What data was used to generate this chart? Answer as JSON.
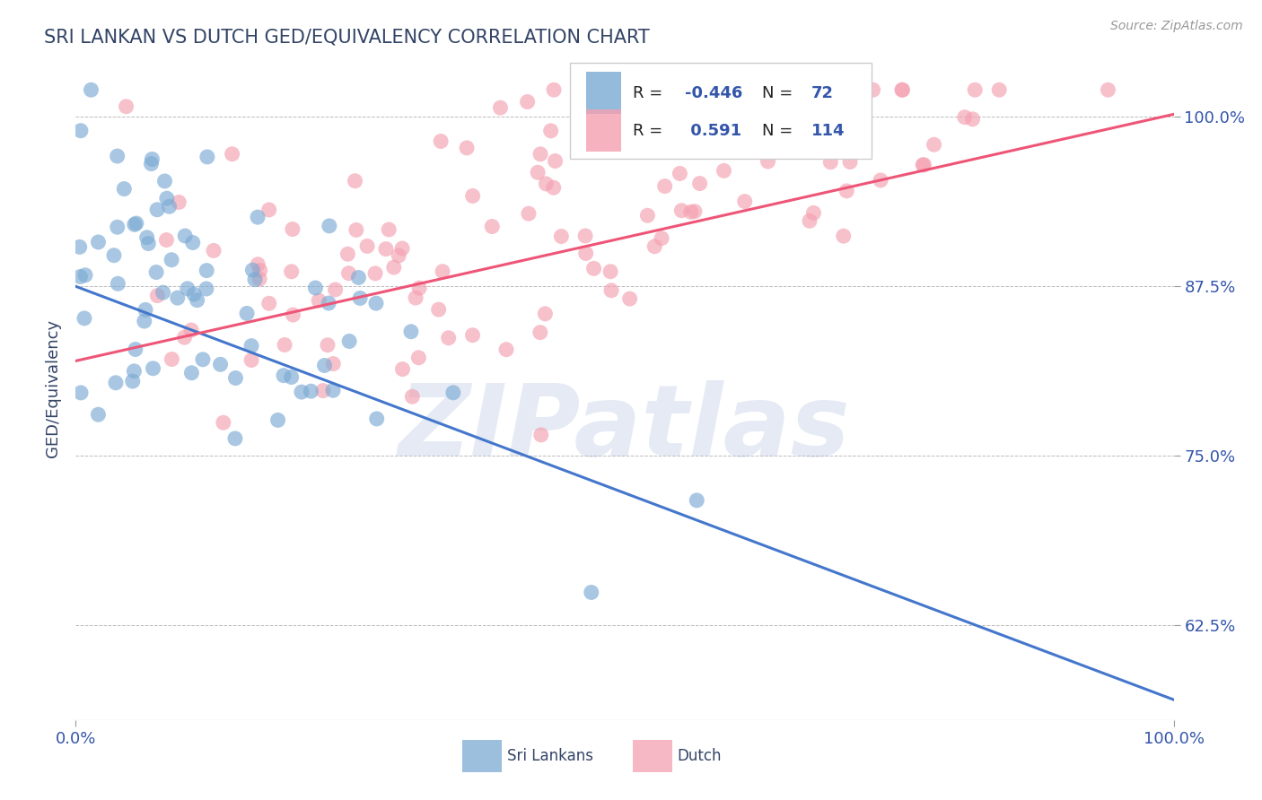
{
  "title": "SRI LANKAN VS DUTCH GED/EQUIVALENCY CORRELATION CHART",
  "source": "Source: ZipAtlas.com",
  "ylabel": "GED/Equivalency",
  "xlim": [
    0.0,
    1.0
  ],
  "ylim": [
    0.555,
    1.045
  ],
  "yticks": [
    0.625,
    0.75,
    0.875,
    1.0
  ],
  "ytick_labels": [
    "62.5%",
    "75.0%",
    "87.5%",
    "100.0%"
  ],
  "sri_lankan_R": -0.446,
  "sri_lankan_N": 72,
  "dutch_R": 0.591,
  "dutch_N": 114,
  "sri_lankan_color": "#7BAAD4",
  "dutch_color": "#F4A0B0",
  "sri_lankan_line_color": "#4477CC",
  "dutch_line_color": "#EE5577",
  "background_color": "#FFFFFF",
  "title_color": "#334466",
  "watermark": "ZIPatlas",
  "watermark_color": "#AABCDD",
  "grid_color": "#BBBBBB",
  "legend_color": "#3355AA"
}
